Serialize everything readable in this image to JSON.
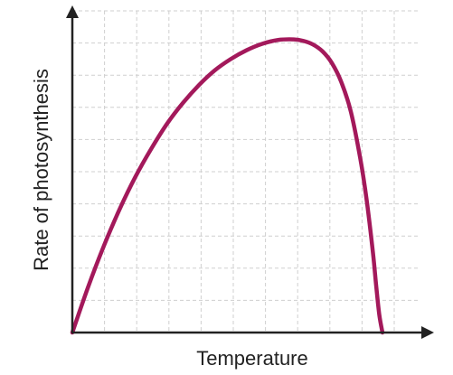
{
  "chart_data": {
    "type": "line",
    "title": "",
    "xlabel": "Temperature",
    "ylabel": "Rate of photosynthesis",
    "x_ticks_labeled": false,
    "y_ticks_labeled": false,
    "xlim": [
      0,
      10
    ],
    "ylim": [
      0,
      10
    ],
    "grid": true,
    "legend": "none",
    "series": [
      {
        "color": "#a3195b",
        "x": [
          0,
          0.5,
          1,
          1.5,
          2,
          2.5,
          3,
          3.5,
          4,
          4.5,
          5,
          5.5,
          6,
          6.5,
          7,
          7.3,
          7.6,
          7.9,
          8.2,
          8.5,
          8.8,
          9.1,
          9.3,
          9.5,
          9.6,
          9.7,
          9.8
        ],
        "y": [
          0,
          1.55,
          2.95,
          4.2,
          5.3,
          6.25,
          7.1,
          7.8,
          8.4,
          8.9,
          9.28,
          9.58,
          9.8,
          9.93,
          9.95,
          9.9,
          9.78,
          9.55,
          9.15,
          8.5,
          7.5,
          5.9,
          4.5,
          2.7,
          1.6,
          0.6,
          0
        ]
      }
    ],
    "colors": {
      "curve": "#a3195b",
      "axes": "#222222",
      "grid": "#cfcfcf"
    }
  }
}
